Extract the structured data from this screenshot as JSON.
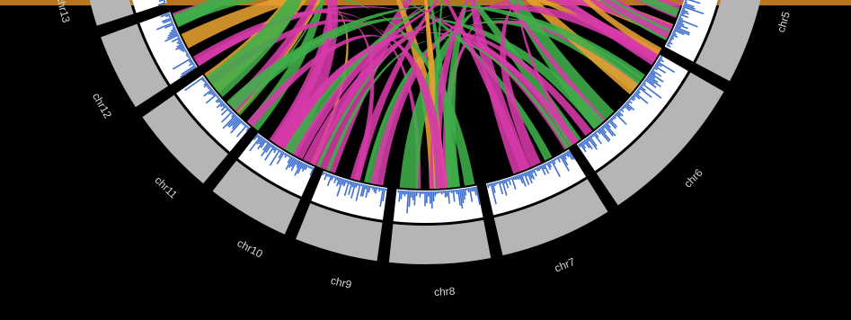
{
  "colors": {
    "background": "#000000",
    "top_bar": "#b8741f",
    "ideogram": "#b5b5b5",
    "track_bg": "#ffffff",
    "histogram": "#3f6fcf",
    "link_magenta": "#d63aa8",
    "link_green": "#3fae49",
    "link_orange": "#e6a030"
  },
  "chromosomes": [
    {
      "id": "chr5",
      "label": "chr5"
    },
    {
      "id": "chr6",
      "label": "chr6"
    },
    {
      "id": "chr7",
      "label": "chr7"
    },
    {
      "id": "chr8",
      "label": "chr8"
    },
    {
      "id": "chr9",
      "label": "chr9"
    },
    {
      "id": "chr10",
      "label": "chr10"
    },
    {
      "id": "chr11",
      "label": "chr11"
    },
    {
      "id": "chr12",
      "label": "chr12"
    },
    {
      "id": "chr13",
      "label": "chr13"
    }
  ]
}
